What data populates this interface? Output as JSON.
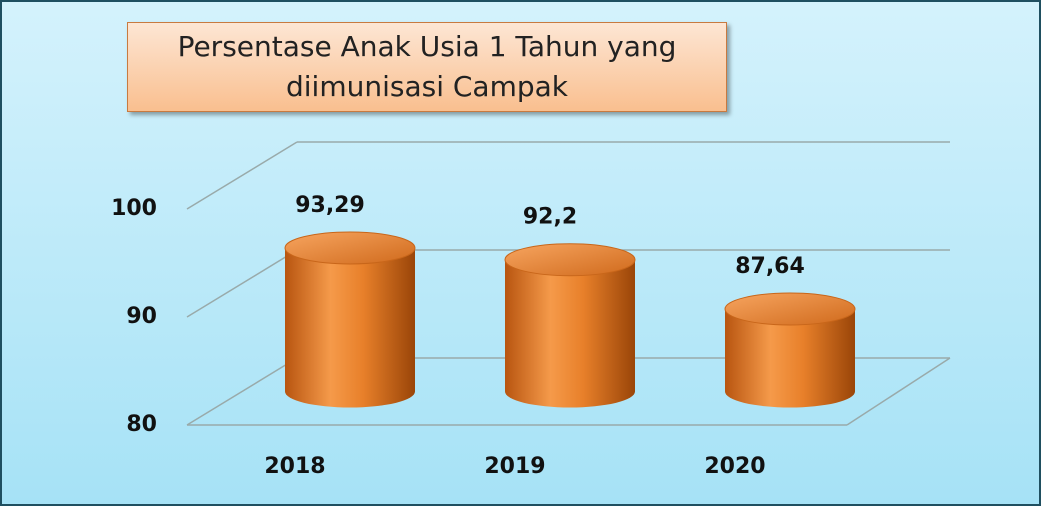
{
  "chart_data": {
    "type": "bar",
    "title": "Persentase Anak Usia 1 Tahun yang diimunisasi Campak",
    "categories": [
      "2018",
      "2019",
      "2020"
    ],
    "values": [
      93.29,
      92.2,
      87.64
    ],
    "value_labels": [
      "93,29",
      "92,2",
      "87,64"
    ],
    "color": "#e8802a",
    "ylim": [
      80,
      100
    ],
    "yticks": [
      80,
      90,
      100
    ],
    "grid": true
  }
}
